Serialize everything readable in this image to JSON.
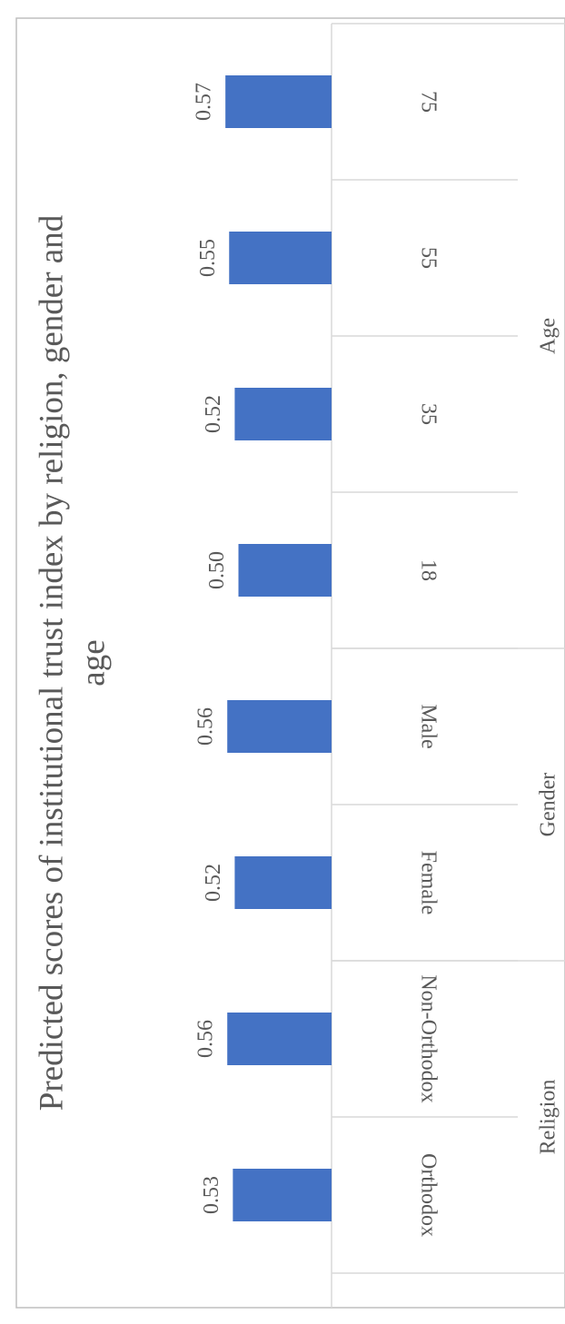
{
  "chart_data": {
    "type": "bar",
    "orientation": "horizontal",
    "title": "Predicted scores of institutional trust index by religion, gender and age",
    "title_lines": [
      "Predicted scores of institutional trust index by religion, gender and",
      "age"
    ],
    "categories": [
      "Orthodox",
      "Non-Orthodox",
      "Female",
      "Male",
      "18",
      "35",
      "55",
      "75"
    ],
    "values": [
      0.53,
      0.56,
      0.52,
      0.56,
      0.5,
      0.52,
      0.55,
      0.57
    ],
    "value_labels": [
      "0.53",
      "0.56",
      "0.52",
      "0.56",
      "0.50",
      "0.52",
      "0.55",
      "0.57"
    ],
    "groups": [
      {
        "label": "Religion",
        "size": 2
      },
      {
        "label": "Gender",
        "size": 2
      },
      {
        "label": "Age",
        "size": 4
      }
    ],
    "color": "#4472c4",
    "ylim": [
      0,
      0.6
    ]
  }
}
